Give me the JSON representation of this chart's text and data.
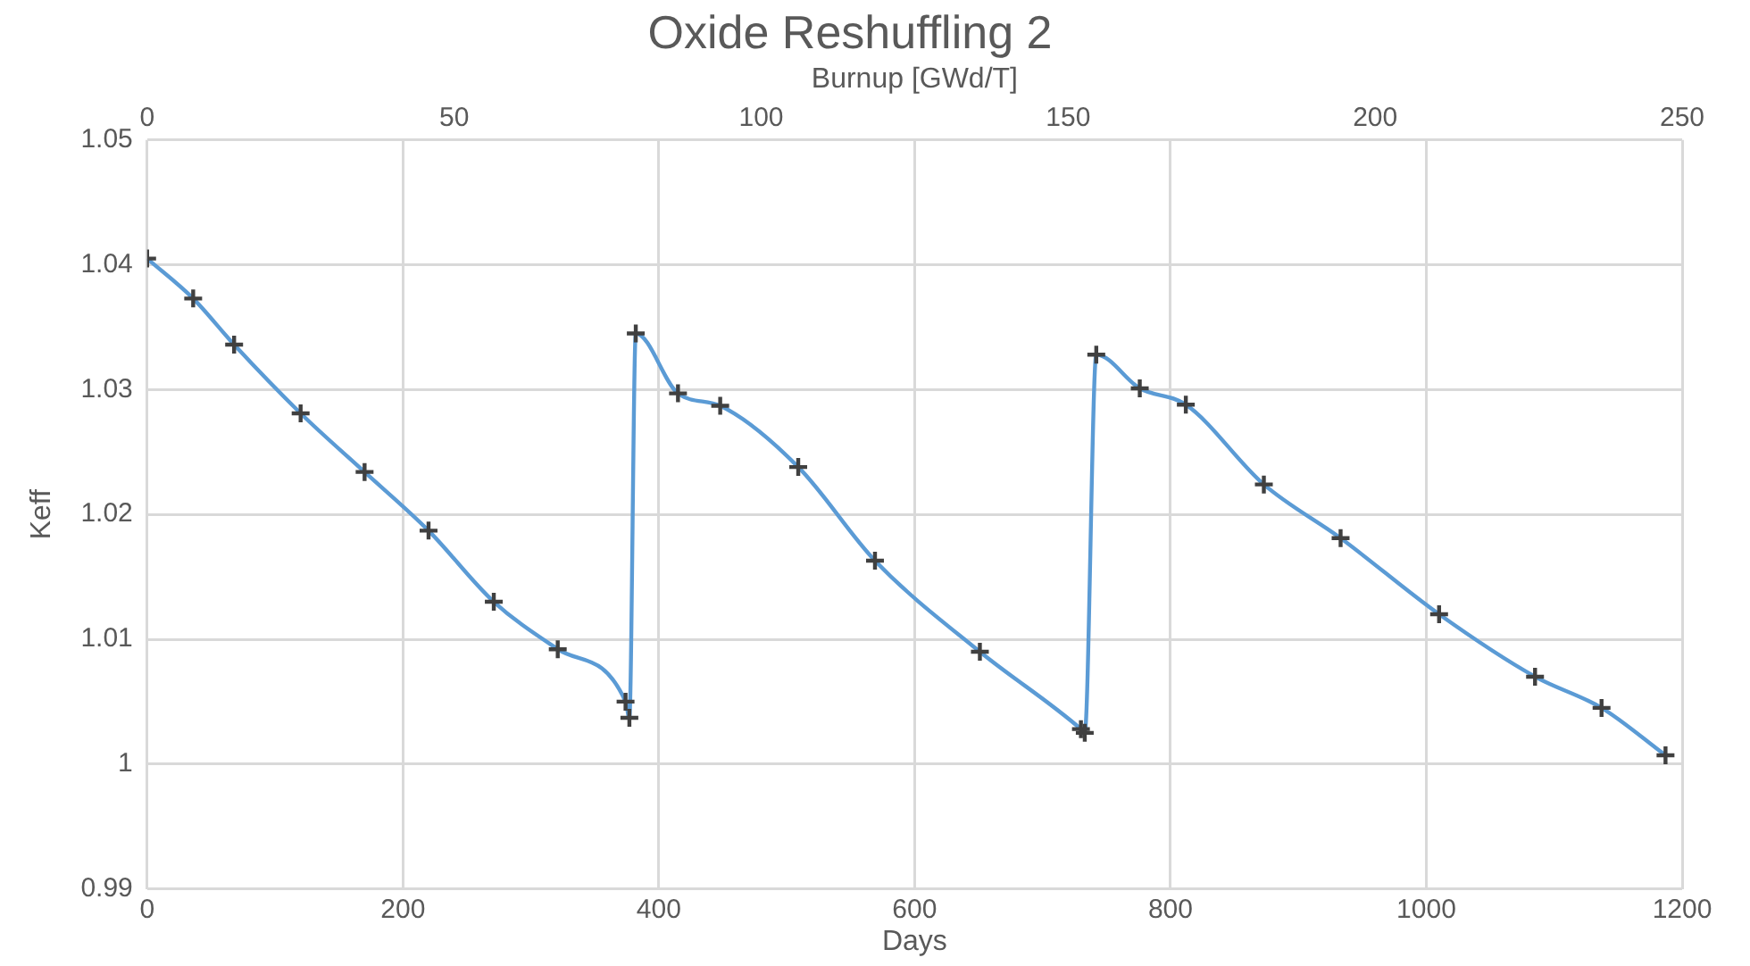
{
  "chart_data": {
    "type": "line",
    "title": "Oxide Reshuffling 2",
    "xlabel": "Days",
    "x2label": "Burnup [GWd/T]",
    "ylabel": "Keff",
    "x": [
      0,
      36,
      68,
      120,
      170,
      220,
      271,
      321,
      374,
      377,
      382,
      415,
      448,
      509,
      569,
      651,
      730,
      733,
      742,
      776,
      812,
      873,
      933,
      1010,
      1085,
      1137,
      1187
    ],
    "series": [
      {
        "color": "#5b9bd5",
        "values": [
          1.0405,
          1.0373,
          1.0336,
          1.0281,
          1.0234,
          1.0187,
          1.013,
          1.0092,
          1.005,
          1.0037,
          1.0345,
          1.0297,
          1.0287,
          1.0238,
          1.0163,
          1.009,
          1.0028,
          1.0025,
          1.0328,
          1.0301,
          1.0288,
          1.0224,
          1.0181,
          1.012,
          1.007,
          1.0045,
          1.0007
        ]
      }
    ],
    "xlim": [
      0,
      1200
    ],
    "xticks": [
      0,
      200,
      400,
      600,
      800,
      1000,
      1200
    ],
    "x2lim": [
      0,
      250
    ],
    "x2ticks": [
      0,
      50,
      100,
      150,
      200,
      250
    ],
    "ylim": [
      0.99,
      1.05
    ],
    "yticks": [
      0.99,
      1,
      1.01,
      1.02,
      1.03,
      1.04,
      1.05
    ],
    "grid": true,
    "legend": false,
    "marker": "cross",
    "line_style": "solid"
  }
}
